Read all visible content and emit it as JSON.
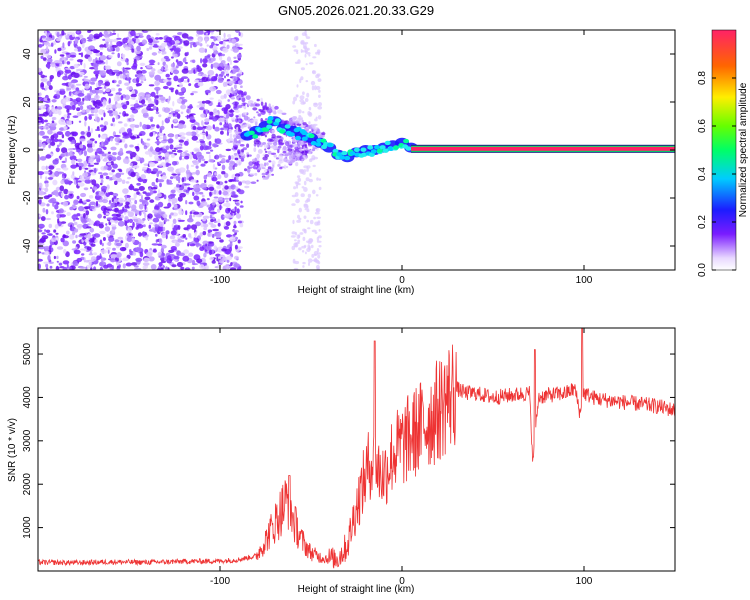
{
  "title": "GN05.2026.021.20.33.G29",
  "chart_data": [
    {
      "type": "heatmap",
      "xlabel": "Height of straight line (km)",
      "ylabel": "Frequency (Hz)",
      "xlim": [
        -200,
        150
      ],
      "ylim": [
        -50,
        50
      ],
      "xticks": [
        -100,
        0,
        100
      ],
      "yticks": [
        -40,
        -20,
        0,
        20,
        40
      ],
      "colorbar": {
        "label": "Normalized spectral amplitude",
        "range": [
          0,
          1
        ],
        "ticks": [
          0,
          0.2,
          0.4,
          0.6,
          0.8
        ]
      },
      "features": {
        "noise_region_km": [
          -200,
          -88
        ],
        "noise_band_km": [
          -60,
          -45
        ],
        "signal_onset_km": -85,
        "stable_line_start_km": 5,
        "stable_frequency_hz": 0.5
      },
      "trace": {
        "x": [
          -85,
          -80,
          -75,
          -70,
          -65,
          -60,
          -55,
          -50,
          -45,
          -40,
          -35,
          -30,
          -25,
          -20,
          -15,
          -10,
          -5,
          0,
          5
        ],
        "y": [
          6,
          8,
          10,
          12,
          9,
          8,
          6,
          5,
          3,
          1,
          -2,
          -3,
          -1,
          0,
          0,
          1,
          2,
          3,
          1
        ]
      }
    },
    {
      "type": "line",
      "xlabel": "Height of straight line (km)",
      "ylabel": "SNR (10 * v/v)",
      "xlim": [
        -200,
        150
      ],
      "ylim": [
        0,
        5600
      ],
      "xticks": [
        -100,
        0,
        100
      ],
      "yticks": [
        1000,
        2000,
        3000,
        4000,
        5000
      ],
      "series": [
        {
          "name": "SNR",
          "color": "#ee3333",
          "x": [
            -200,
            -180,
            -160,
            -140,
            -120,
            -100,
            -90,
            -80,
            -75,
            -70,
            -65,
            -62,
            -60,
            -55,
            -50,
            -45,
            -40,
            -35,
            -30,
            -25,
            -20,
            -17,
            -15,
            -10,
            -5,
            0,
            5,
            10,
            15,
            20,
            25,
            30,
            35,
            40,
            50,
            60,
            70,
            72,
            75,
            80,
            90,
            95,
            98,
            100,
            105,
            110,
            120,
            130,
            140,
            150
          ],
          "values": [
            200,
            190,
            210,
            200,
            220,
            230,
            260,
            350,
            700,
            1100,
            1500,
            1700,
            1200,
            700,
            420,
            320,
            280,
            300,
            600,
            1500,
            2200,
            2600,
            2400,
            2200,
            2700,
            2900,
            3100,
            3300,
            3500,
            3700,
            4000,
            4200,
            4100,
            4100,
            4000,
            4050,
            4100,
            2500,
            4000,
            4050,
            4100,
            4200,
            3600,
            4100,
            4000,
            3950,
            3900,
            3850,
            3800,
            3700
          ]
        }
      ],
      "annotations": {
        "spikes": [
          {
            "x": -15,
            "value": 5300
          },
          {
            "x": 73,
            "value": 5100
          },
          {
            "x": 99,
            "value": 5600
          },
          {
            "x": -62,
            "value": 2200
          }
        ]
      }
    }
  ]
}
